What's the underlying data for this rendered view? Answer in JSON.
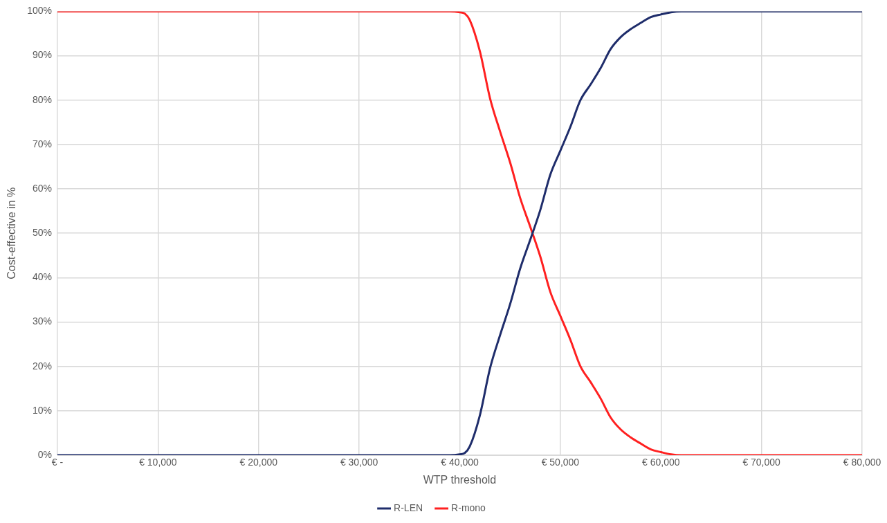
{
  "chart_data": {
    "type": "line",
    "xlabel": "WTP threshold",
    "ylabel": "Cost-effective in %",
    "x": [
      0,
      39000,
      40000,
      40500,
      41000,
      42000,
      43000,
      44000,
      45000,
      46000,
      47000,
      48000,
      49000,
      50000,
      51000,
      52000,
      53000,
      54000,
      55000,
      56000,
      57000,
      58000,
      59000,
      60000,
      61000,
      62000,
      80000
    ],
    "series": [
      {
        "name": "R-LEN",
        "color": "#1f2d6b",
        "values": [
          0,
          0,
          0.2,
          0.5,
          2,
          9,
          19.5,
          27,
          34,
          42,
          48.5,
          55.2,
          63.2,
          68.6,
          74,
          80,
          83.5,
          87.2,
          91.5,
          94.2,
          96,
          97.4,
          98.7,
          99.3,
          99.8,
          100,
          100
        ]
      },
      {
        "name": "R-mono",
        "color": "#ff2020",
        "values": [
          100,
          100,
          99.8,
          99.5,
          98,
          91,
          80.5,
          73,
          66,
          58,
          51.5,
          44.8,
          36.8,
          31.4,
          26,
          20,
          16.5,
          12.8,
          8.5,
          5.8,
          4,
          2.6,
          1.3,
          0.7,
          0.2,
          0,
          0
        ]
      }
    ],
    "xlim": [
      0,
      80000
    ],
    "xticks": [
      {
        "value": 0,
        "label": "€ -"
      },
      {
        "value": 10000,
        "label": "€ 10,000"
      },
      {
        "value": 20000,
        "label": "€ 20,000"
      },
      {
        "value": 30000,
        "label": "€ 30,000"
      },
      {
        "value": 40000,
        "label": "€ 40,000"
      },
      {
        "value": 50000,
        "label": "€ 50,000"
      },
      {
        "value": 60000,
        "label": "€ 60,000"
      },
      {
        "value": 70000,
        "label": "€ 70,000"
      },
      {
        "value": 80000,
        "label": "€ 80,000"
      }
    ],
    "ylim": [
      0,
      100
    ],
    "yticks": [
      {
        "value": 0,
        "label": "0%"
      },
      {
        "value": 10,
        "label": "10%"
      },
      {
        "value": 20,
        "label": "20%"
      },
      {
        "value": 30,
        "label": "30%"
      },
      {
        "value": 40,
        "label": "40%"
      },
      {
        "value": 50,
        "label": "50%"
      },
      {
        "value": 60,
        "label": "60%"
      },
      {
        "value": 70,
        "label": "70%"
      },
      {
        "value": 80,
        "label": "80%"
      },
      {
        "value": 90,
        "label": "90%"
      },
      {
        "value": 100,
        "label": "100%"
      }
    ],
    "grid": true,
    "legend": "bottom",
    "marker": "none",
    "line_style": "solid"
  }
}
